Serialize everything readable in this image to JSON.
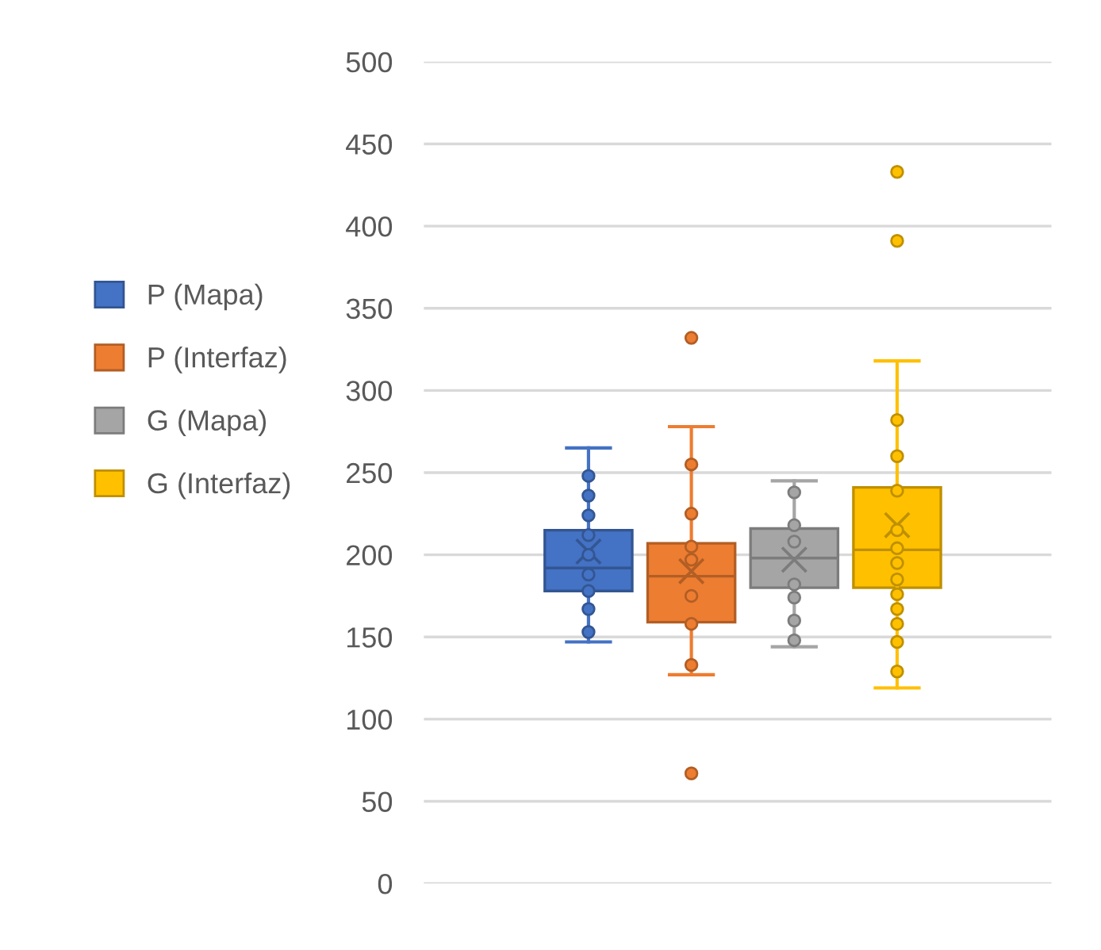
{
  "chart_data": {
    "type": "box",
    "categories": [
      null
    ],
    "ylim": [
      0,
      500
    ],
    "yticks": [
      0,
      50,
      100,
      150,
      200,
      250,
      300,
      350,
      400,
      450,
      500
    ],
    "grid": "y",
    "legend": "left",
    "marker": "circle",
    "series": [
      {
        "name": "P (Mapa)",
        "color": "#4472c4",
        "boxes": [
          {
            "low": 147,
            "q1": 178,
            "median": 192,
            "q3": 215,
            "high": 265,
            "mean": 202,
            "outliers": [
              248,
              236,
              224,
              212,
              200,
              188,
              178,
              167,
              153
            ]
          }
        ]
      },
      {
        "name": "P (Interfaz)",
        "color": "#ed7d31",
        "boxes": [
          {
            "low": 127,
            "q1": 159,
            "median": 187,
            "q3": 207,
            "high": 278,
            "mean": 190,
            "outliers": [
              332,
              255,
              225,
              205,
              197,
              175,
              158,
              133,
              67
            ]
          }
        ]
      },
      {
        "name": "G (Mapa)",
        "color": "#a5a5a5",
        "boxes": [
          {
            "low": 144,
            "q1": 180,
            "median": 198,
            "q3": 216,
            "high": 245,
            "mean": 197,
            "outliers": [
              238,
              218,
              208,
              182,
              174,
              160,
              148
            ]
          }
        ]
      },
      {
        "name": "G (Interfaz)",
        "color": "#ffc000",
        "boxes": [
          {
            "low": 119,
            "q1": 180,
            "median": 203,
            "q3": 241,
            "high": 318,
            "mean": 218,
            "outliers": [
              433,
              391,
              282,
              260,
              239,
              215,
              204,
              195,
              185,
              176,
              167,
              158,
              147,
              129
            ]
          }
        ]
      }
    ]
  }
}
